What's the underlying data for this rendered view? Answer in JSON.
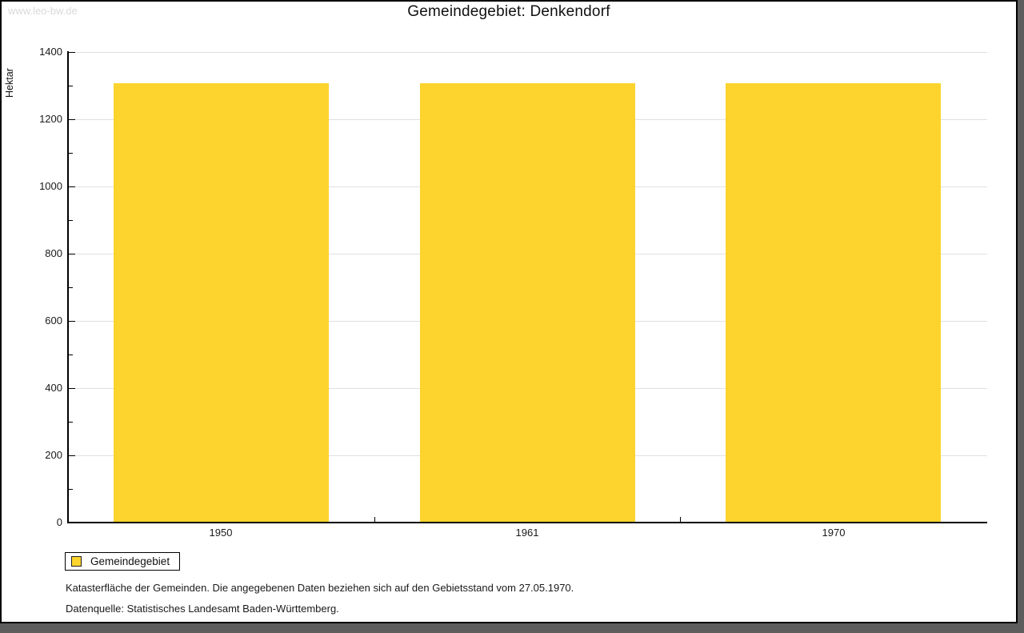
{
  "watermark": "www.leo-bw.de",
  "title": "Gemeindegebiet: Denkendorf",
  "chart_data": {
    "type": "bar",
    "title": "Gemeindegebiet: Denkendorf",
    "categories": [
      "1950",
      "1961",
      "1970"
    ],
    "series": [
      {
        "name": "Gemeindegebiet",
        "values": [
          1306,
          1306,
          1306
        ]
      }
    ],
    "xlabel": "",
    "ylabel": "Hektar",
    "ylim": [
      0,
      1400
    ],
    "ytick_step": 200,
    "ytick_minor_step": 100,
    "grid": true,
    "bar_color": "#fcd42d",
    "axis_color": "#000000",
    "gridline_color": "#e0e0e0",
    "legend_position": "bottom-left"
  },
  "legend": {
    "label": "Gemeindegebiet",
    "swatch_color": "#fcd42d"
  },
  "captions": {
    "line1": "Katasterfläche der Gemeinden. Die angegebenen Daten beziehen sich auf den Gebietsstand vom 27.05.1970.",
    "line2": "Datenquelle: Statistisches Landesamt Baden-Württemberg."
  }
}
